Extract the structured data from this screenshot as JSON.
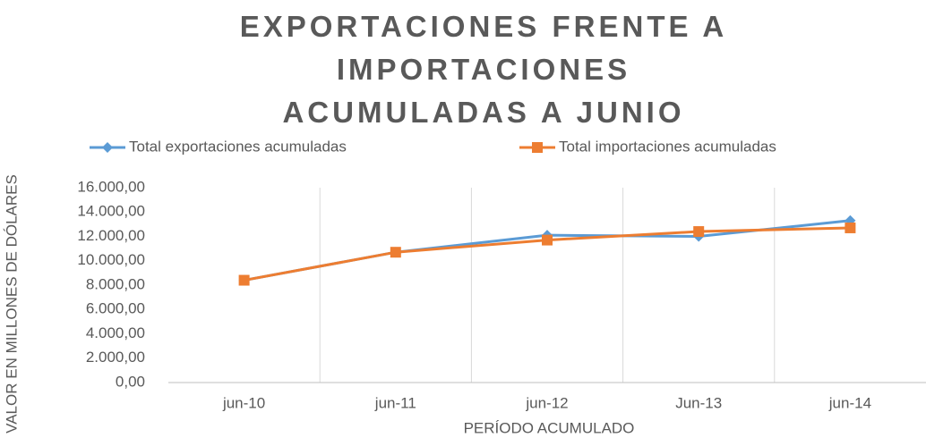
{
  "chart_data": {
    "type": "line",
    "title": "EXPORTACIONES FRENTE A IMPORTACIONES ACUMULADAS A JUNIO",
    "categories": [
      "jun-10",
      "jun-11",
      "jun-12",
      "Jun-13",
      "jun-14"
    ],
    "series": [
      {
        "name": "Total exportaciones acumuladas",
        "color": "#5b9bd5",
        "marker": "diamond",
        "values": [
          8400,
          10700,
          12100,
          12000,
          13300
        ]
      },
      {
        "name": "Total importaciones acumuladas",
        "color": "#ed7d31",
        "marker": "square",
        "values": [
          8400,
          10700,
          11700,
          12400,
          12700
        ]
      }
    ],
    "ylim": [
      0,
      16000
    ],
    "yticks": [
      {
        "value": 0,
        "label": "0,00"
      },
      {
        "value": 2000,
        "label": "2.000,00"
      },
      {
        "value": 4000,
        "label": "4.000,00"
      },
      {
        "value": 6000,
        "label": "6.000,00"
      },
      {
        "value": 8000,
        "label": "8.000,00"
      },
      {
        "value": 10000,
        "label": "10.000,00"
      },
      {
        "value": 12000,
        "label": "12.000,00"
      },
      {
        "value": 14000,
        "label": "14.000,00"
      },
      {
        "value": 16000,
        "label": "16.000,00"
      }
    ],
    "xlabel": "PERÍODO ACUMULADO",
    "ylabel": "VALOR EN MILLONES DE DÓLARES",
    "legend": "top",
    "grid": "vertical"
  }
}
